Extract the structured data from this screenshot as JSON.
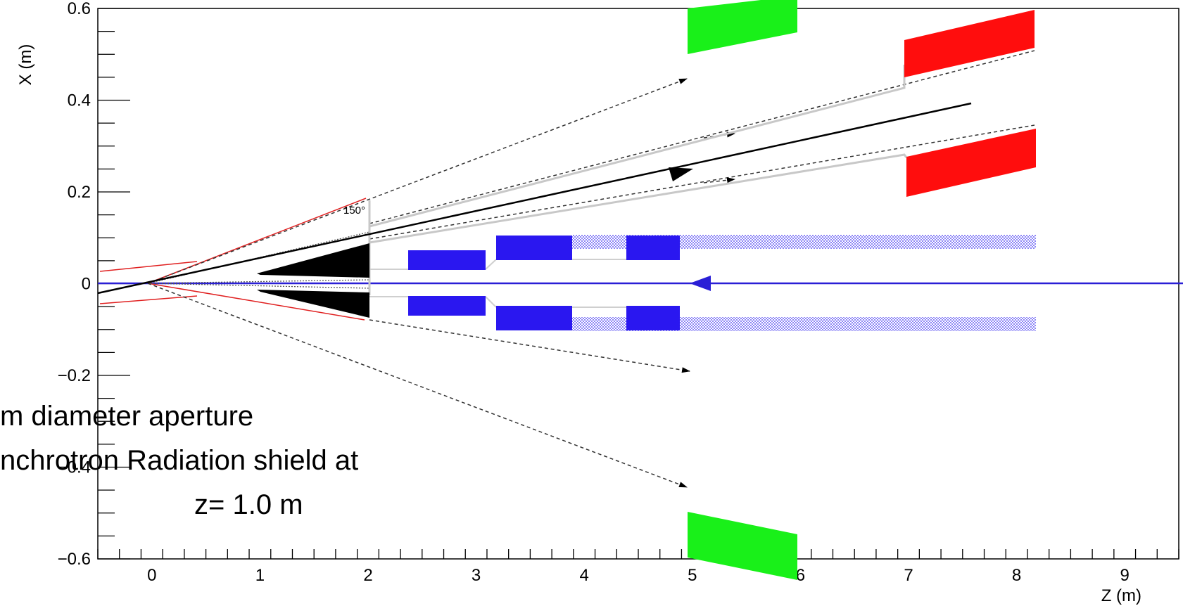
{
  "axes": {
    "x_title": "Z (m)",
    "y_title": "X (m)",
    "x_range": [
      -0.5,
      9.5
    ],
    "y_range": [
      -0.6,
      0.6
    ],
    "x_ticks": [
      "0",
      "1",
      "2",
      "3",
      "4",
      "5",
      "6",
      "7",
      "8",
      "9"
    ],
    "y_ticks": [
      "0.6",
      "0.4",
      "0.2",
      "0",
      "−0.2",
      "−0.4",
      "−0.6"
    ]
  },
  "annotations": {
    "angle_label": "150°",
    "aperture_line1": "m diameter aperture",
    "aperture_line2": "nchrotron Radiation shield at",
    "aperture_line3": "z= 1.0 m"
  },
  "colors": {
    "beamline": "#2a1fd6",
    "magnet": "#2a17f0",
    "detector_green": "#19f019",
    "detector_red": "#ff0d0d",
    "shield": "#000000",
    "cone": "#e02020"
  }
}
